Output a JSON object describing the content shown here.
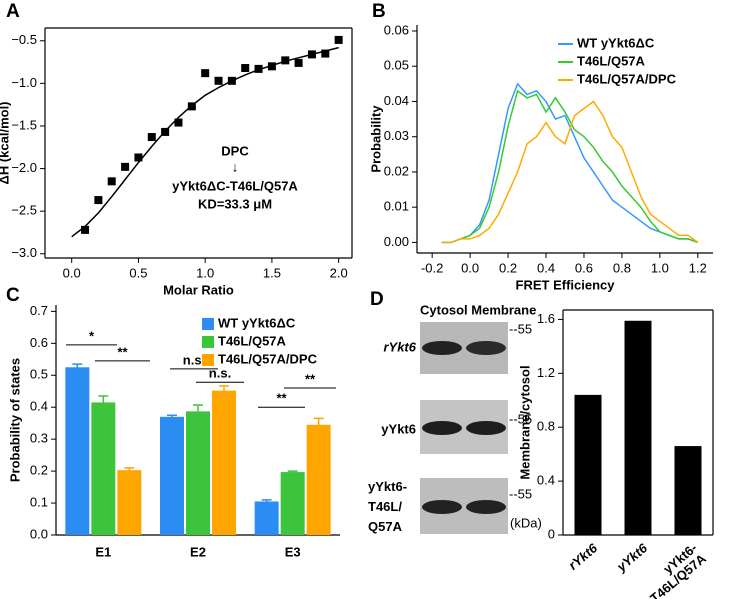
{
  "panels": [
    "A",
    "B",
    "C",
    "D"
  ],
  "blot": {
    "header": "Cytosol Membrane",
    "rows": [
      "rYkt6",
      "yYkt6",
      "yYkt6-T46L/Q57A"
    ],
    "marker": "--55",
    "unit": "(kDa)"
  },
  "chart_data": [
    {
      "type": "scatter",
      "xlabel": "Molar Ratio",
      "ylabel": "ΔH (kcal/mol)",
      "annotations": [
        "DPC",
        "↓",
        "yYkt6ΔC-T46L/Q57A",
        "KD=33.3 μM"
      ],
      "xlim": [
        -0.2,
        2.1
      ],
      "ylim": [
        -3.05,
        -0.35
      ],
      "xticks": [
        {
          "value": 0,
          "label": "0.0"
        },
        0.5,
        {
          "value": 1,
          "label": "1.0"
        },
        1.5,
        {
          "value": 2,
          "label": "2.0"
        }
      ],
      "yticks": [
        {
          "value": -3,
          "label": "−3.0"
        },
        {
          "value": -2.5,
          "label": "−2.5"
        },
        {
          "value": -2,
          "label": "−2.0"
        },
        {
          "value": -1.5,
          "label": "−1.5"
        },
        {
          "value": -1,
          "label": "−1.0"
        },
        {
          "value": -0.5,
          "label": "−0.5"
        }
      ],
      "frame": true,
      "series": [
        {
          "kind": "marker",
          "color": "#000000",
          "x": [
            0.1,
            0.2,
            0.3,
            0.4,
            0.5,
            0.6,
            0.7,
            0.8,
            0.9,
            1.0,
            1.1,
            1.2,
            1.3,
            1.4,
            1.5,
            1.6,
            1.7,
            1.8,
            1.9,
            2.0
          ],
          "values": [
            -2.72,
            -2.37,
            -2.15,
            -1.98,
            -1.87,
            -1.63,
            -1.57,
            -1.46,
            -1.27,
            -0.88,
            -0.97,
            -0.97,
            -0.82,
            -0.83,
            -0.8,
            -0.73,
            -0.76,
            -0.66,
            -0.65,
            -0.49
          ]
        },
        {
          "kind": "line",
          "color": "#000000",
          "x": [
            0,
            0.1,
            0.2,
            0.3,
            0.4,
            0.5,
            0.6,
            0.7,
            0.8,
            0.9,
            1.0,
            1.1,
            1.2,
            1.3,
            1.4,
            1.5,
            1.6,
            1.7,
            1.8,
            1.9,
            2.0
          ],
          "values": [
            -2.8,
            -2.68,
            -2.52,
            -2.33,
            -2.13,
            -1.93,
            -1.74,
            -1.56,
            -1.4,
            -1.26,
            -1.14,
            -1.05,
            -0.97,
            -0.9,
            -0.84,
            -0.79,
            -0.74,
            -0.7,
            -0.66,
            -0.62,
            -0.58
          ]
        }
      ]
    },
    {
      "type": "line",
      "xlabel": "FRET Efficiency",
      "ylabel": "Probability",
      "legend": "upper right",
      "xlim": [
        -0.28,
        1.28
      ],
      "ylim": [
        -0.003,
        0.0617
      ],
      "xticks": [
        -0.2,
        {
          "value": 0,
          "label": "0.0"
        },
        0.2,
        0.4,
        0.6,
        0.8,
        {
          "value": 1,
          "label": "1.0"
        },
        1.2
      ],
      "yticks": [
        {
          "value": 0,
          "label": "0.00"
        },
        0.01,
        0.02,
        0.03,
        0.04,
        0.05,
        0.06
      ],
      "x": [
        -0.15,
        -0.1,
        -0.05,
        0,
        0.05,
        0.1,
        0.15,
        0.2,
        0.25,
        0.3,
        0.35,
        0.4,
        0.45,
        0.5,
        0.55,
        0.6,
        0.65,
        0.7,
        0.75,
        0.8,
        0.85,
        0.9,
        0.95,
        1.0,
        1.05,
        1.1,
        1.15,
        1.2
      ],
      "series": [
        {
          "name": "WT yYkt6ΔC",
          "color": "#3399ff",
          "values": [
            0,
            0,
            0.001,
            0.002,
            0.005,
            0.012,
            0.025,
            0.038,
            0.045,
            0.042,
            0.043,
            0.04,
            0.035,
            0.036,
            0.03,
            0.024,
            0.02,
            0.016,
            0.012,
            0.01,
            0.008,
            0.006,
            0.004,
            0.003,
            0.002,
            0.001,
            0.001,
            0
          ]
        },
        {
          "name": "T46L/Q57A",
          "color": "#33cc33",
          "values": [
            0,
            0,
            0.001,
            0.002,
            0.004,
            0.01,
            0.02,
            0.033,
            0.043,
            0.041,
            0.042,
            0.037,
            0.041,
            0.037,
            0.032,
            0.03,
            0.027,
            0.023,
            0.02,
            0.016,
            0.013,
            0.01,
            0.006,
            0.003,
            0.002,
            0.001,
            0.001,
            0
          ]
        },
        {
          "name": "T46L/Q57A/DPC",
          "color": "#ffaa00",
          "values": [
            0,
            0,
            0.001,
            0.001,
            0.002,
            0.004,
            0.008,
            0.014,
            0.02,
            0.028,
            0.03,
            0.034,
            0.03,
            0.028,
            0.036,
            0.038,
            0.04,
            0.036,
            0.03,
            0.027,
            0.02,
            0.013,
            0.008,
            0.006,
            0.004,
            0.002,
            0.002,
            0
          ]
        }
      ]
    },
    {
      "type": "bar",
      "ylabel": "Probability of states",
      "legend": "upper right",
      "categories": [
        "E1",
        "E2",
        "E3"
      ],
      "ylim": [
        0,
        0.72
      ],
      "yticks": [
        {
          "value": 0,
          "label": "0.0"
        },
        0.1,
        0.2,
        0.3,
        0.4,
        0.5,
        0.6,
        0.7
      ],
      "annotations": [
        "*",
        "**",
        "n.s.",
        "n.s.",
        "**",
        "**"
      ],
      "series": [
        {
          "name": "WT yYkt6ΔC",
          "color": "#2b8cf2",
          "values": [
            0.525,
            0.37,
            0.105
          ],
          "errors": [
            0.01,
            0.005,
            0.005
          ]
        },
        {
          "name": "T46L/Q57A",
          "color": "#3cc43c",
          "values": [
            0.415,
            0.387,
            0.197
          ],
          "errors": [
            0.02,
            0.02,
            0.003
          ]
        },
        {
          "name": "T46L/Q57A/DPC",
          "color": "#ffa500",
          "values": [
            0.203,
            0.452,
            0.345
          ],
          "errors": [
            0.007,
            0.015,
            0.02
          ]
        }
      ]
    },
    {
      "type": "bar",
      "ylabel": "Membrane/cytosol",
      "frame": true,
      "color": "#000000",
      "categories": [
        "rYkt6",
        "yYkt6",
        "yYkt6-T46L/Q57A"
      ],
      "values": [
        1.04,
        1.59,
        0.66
      ],
      "ylim": [
        0,
        1.67
      ],
      "yticks": [
        0,
        0.4,
        0.8,
        1.2,
        1.6
      ]
    }
  ]
}
